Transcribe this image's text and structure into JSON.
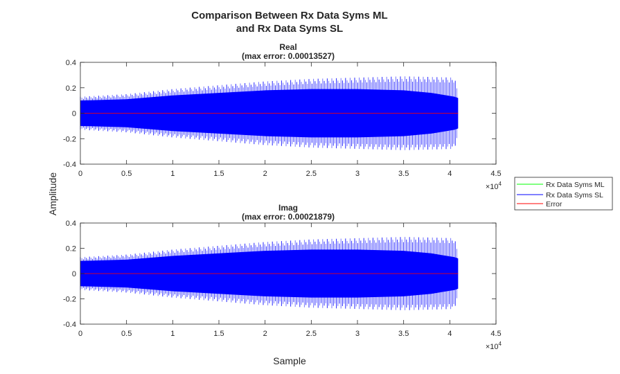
{
  "chart_data": {
    "type": "line",
    "title": [
      "Comparison Between Rx Data Syms ML",
      "and Rx Data Syms SL"
    ],
    "ylabel": "Amplitude",
    "xlabel": "Sample",
    "x_exponent_label": "×10",
    "x_exponent": "4",
    "legend": {
      "placement": "right",
      "entries": [
        {
          "name": "Rx Data Syms ML",
          "color": "#00ff00"
        },
        {
          "name": "Rx Data Syms SL",
          "color": "#0000ff"
        },
        {
          "name": "Error",
          "color": "#ff0000"
        }
      ]
    },
    "subplots": [
      {
        "title": "Real",
        "subtitle": "(max error: 0.00013527)",
        "xlim": [
          0,
          45000
        ],
        "ylim": [
          -0.4,
          0.4
        ],
        "xticks": [
          0,
          5000,
          10000,
          15000,
          20000,
          25000,
          30000,
          35000,
          40000,
          45000
        ],
        "xtick_labels": [
          "0",
          "0.5",
          "1",
          "1.5",
          "2",
          "2.5",
          "3",
          "3.5",
          "4",
          "4.5"
        ],
        "yticks": [
          -0.4,
          -0.2,
          0,
          0.2,
          0.4
        ],
        "ytick_labels": [
          "-0.4",
          "-0.2",
          "0",
          "0.2",
          "0.4"
        ],
        "signal_envelope": {
          "x": [
            0,
            5000,
            10000,
            15000,
            20000,
            25000,
            30000,
            35000,
            38000,
            40500,
            40900
          ],
          "peak": [
            0.13,
            0.15,
            0.19,
            0.22,
            0.25,
            0.27,
            0.28,
            0.29,
            0.285,
            0.28,
            0.17
          ],
          "core": [
            0.1,
            0.11,
            0.14,
            0.16,
            0.18,
            0.19,
            0.19,
            0.18,
            0.16,
            0.13,
            0.12
          ]
        },
        "error_value": 0
      },
      {
        "title": "Imag",
        "subtitle": "(max error: 0.00021879)",
        "xlim": [
          0,
          45000
        ],
        "ylim": [
          -0.4,
          0.4
        ],
        "xticks": [
          0,
          5000,
          10000,
          15000,
          20000,
          25000,
          30000,
          35000,
          40000,
          45000
        ],
        "xtick_labels": [
          "0",
          "0.5",
          "1",
          "1.5",
          "2",
          "2.5",
          "3",
          "3.5",
          "4",
          "4.5"
        ],
        "yticks": [
          -0.4,
          -0.2,
          0,
          0.2,
          0.4
        ],
        "ytick_labels": [
          "-0.4",
          "-0.2",
          "0",
          "0.2",
          "0.4"
        ],
        "signal_envelope": {
          "x": [
            0,
            5000,
            10000,
            15000,
            20000,
            25000,
            30000,
            35000,
            38000,
            40500,
            40900
          ],
          "peak": [
            0.13,
            0.15,
            0.19,
            0.22,
            0.25,
            0.27,
            0.28,
            0.29,
            0.285,
            0.28,
            0.17
          ],
          "core": [
            0.1,
            0.11,
            0.14,
            0.16,
            0.18,
            0.19,
            0.19,
            0.18,
            0.16,
            0.13,
            0.12
          ]
        },
        "error_value": 0
      }
    ]
  }
}
